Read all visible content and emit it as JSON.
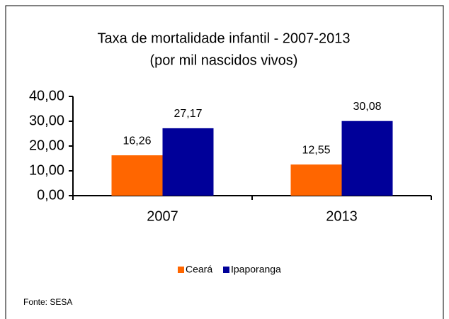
{
  "chart_data": {
    "type": "bar",
    "title": "Taxa de mortalidade infantil - 2007-2013",
    "subtitle": "(por mil nascidos vivos)",
    "categories": [
      "2007",
      "2013"
    ],
    "series": [
      {
        "name": "Ceará",
        "color": "#ff6600",
        "values": [
          16.26,
          12.55
        ],
        "value_labels": [
          "16,26",
          "12,55"
        ]
      },
      {
        "name": "Ipaporanga",
        "color": "#000099",
        "values": [
          27.17,
          30.08
        ],
        "value_labels": [
          "27,17",
          "30,08"
        ]
      }
    ],
    "ylim": [
      0,
      40
    ],
    "yticks": [
      {
        "value": 0,
        "label": "0,00"
      },
      {
        "value": 10,
        "label": "10,00"
      },
      {
        "value": 20,
        "label": "20,00"
      },
      {
        "value": 30,
        "label": "30,00"
      },
      {
        "value": 40,
        "label": "40,00"
      }
    ],
    "legend": "bottom",
    "grid": false,
    "source": "Fonte: SESA"
  }
}
